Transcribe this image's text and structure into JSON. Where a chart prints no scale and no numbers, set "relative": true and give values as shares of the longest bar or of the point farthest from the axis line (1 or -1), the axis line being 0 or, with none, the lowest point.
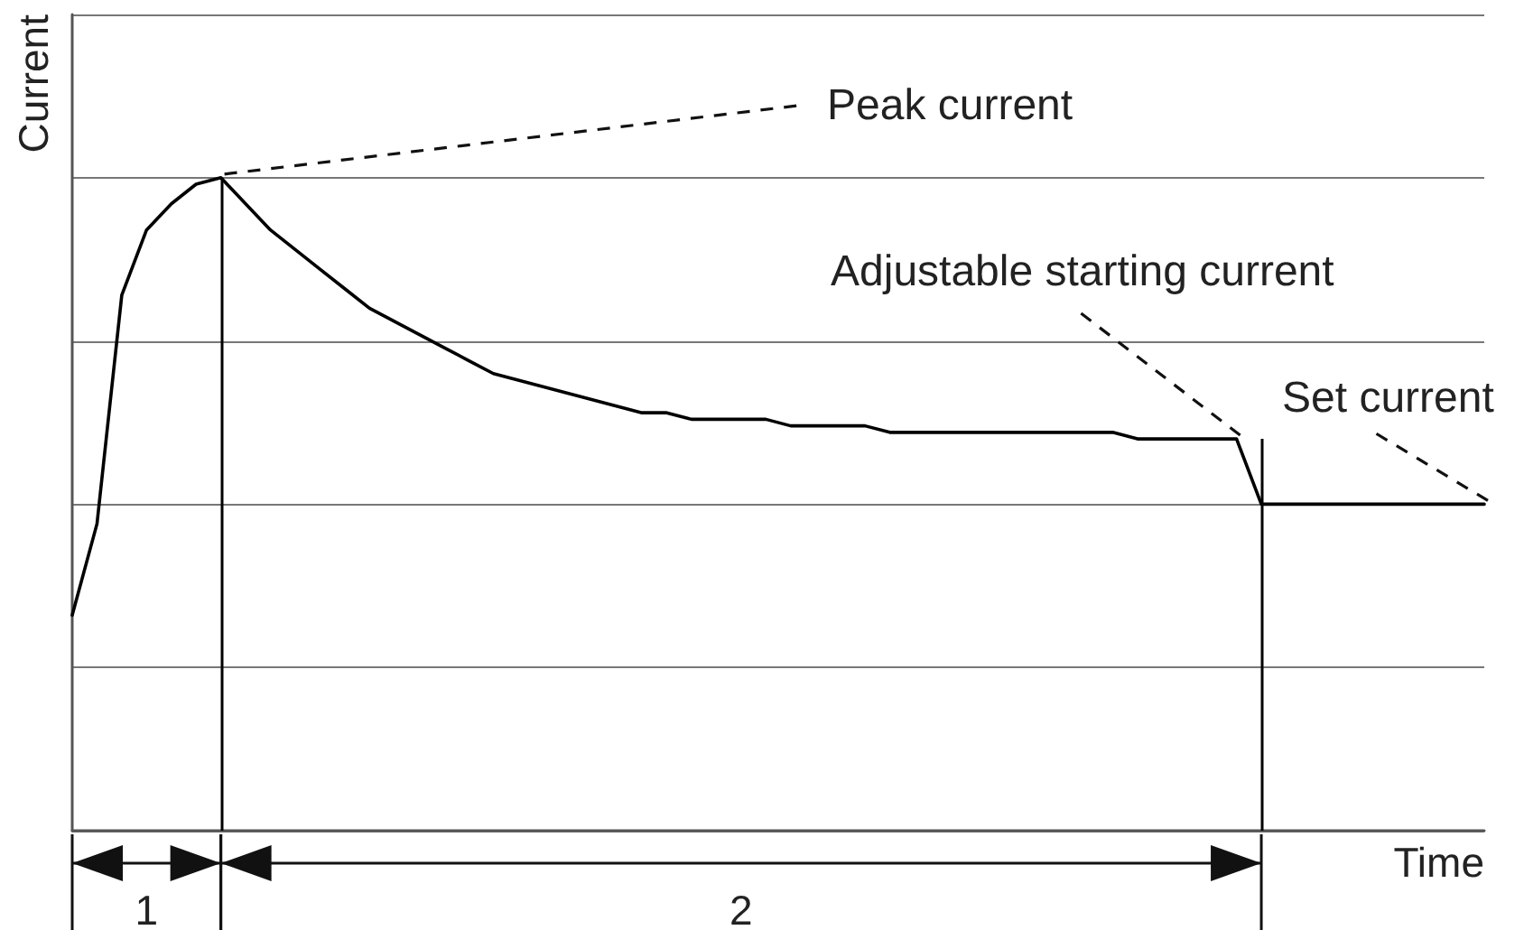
{
  "chart_data": {
    "type": "line",
    "relative": true,
    "xlabel": "Time",
    "ylabel": "Current",
    "categories": [
      null,
      null,
      null,
      null,
      null,
      null,
      null,
      null,
      null,
      null,
      null,
      null,
      null,
      null,
      null,
      null,
      null,
      null,
      null,
      null,
      null,
      null,
      null,
      null,
      null,
      null,
      null,
      null,
      null,
      null,
      null,
      null,
      null,
      null,
      null,
      null,
      null,
      null,
      null,
      null,
      null,
      null,
      null,
      null,
      null,
      null,
      null,
      null,
      null,
      null,
      null,
      null,
      null,
      null,
      null,
      null,
      null,
      null
    ],
    "series": [
      {
        "color": "#000000",
        "values": [
          0.33,
          0.47,
          0.82,
          0.92,
          0.96,
          0.99,
          1,
          0.96,
          0.92,
          0.89,
          0.86,
          0.83,
          0.8,
          0.78,
          0.76,
          0.74,
          0.72,
          0.7,
          0.69,
          0.68,
          0.67,
          0.66,
          0.65,
          0.64,
          0.64,
          0.63,
          0.63,
          0.63,
          0.63,
          0.62,
          0.62,
          0.62,
          0.62,
          0.61,
          0.61,
          0.61,
          0.61,
          0.61,
          0.61,
          0.61,
          0.61,
          0.61,
          0.61,
          0.6,
          0.6,
          0.6,
          0.6,
          0.6,
          0.5,
          0.5,
          0.5,
          0.5,
          0.5,
          0.5,
          0.5,
          0.5,
          0.5,
          0.5
        ]
      }
    ],
    "annotations": [
      "Peak current",
      "Adjustable starting current",
      "Set current",
      "1",
      "2"
    ],
    "grid": "y",
    "marker": "none",
    "line_style": "solid"
  }
}
